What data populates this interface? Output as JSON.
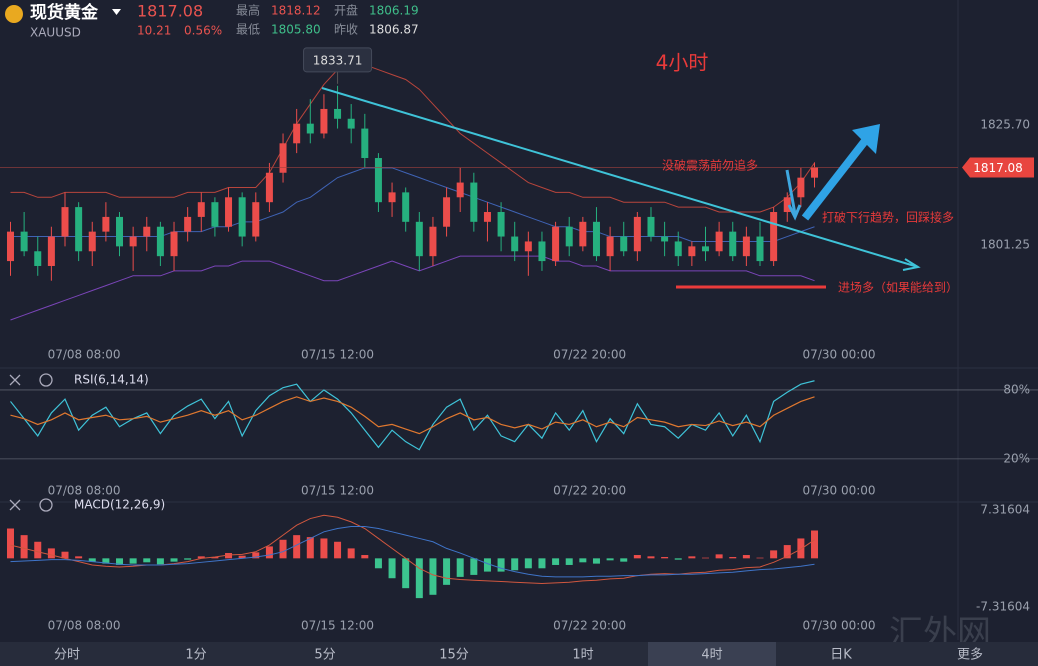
{
  "header": {
    "name": "现货黄金",
    "symbol": "XAUUSD",
    "price": "1817.08",
    "change": "10.21",
    "change_pct": "0.56%",
    "stats": [
      {
        "label": "最高",
        "value": "1818.12"
      },
      {
        "label": "开盘",
        "value": "1806.19"
      },
      {
        "label": "最低",
        "value": "1805.80"
      },
      {
        "label": "昨收",
        "value": "1806.87"
      }
    ]
  },
  "tabs": [
    "分时",
    "1分",
    "5分",
    "15分",
    "1时",
    "4时",
    "日K",
    "更多"
  ],
  "active_tab": 5,
  "watermark": "汇外网",
  "chart_data": [
    {
      "type": "candlestick",
      "title": "4小时",
      "up_color": "#eb4d4b",
      "down_color": "#26b07f",
      "ylim": [
        1780.9,
        1851.2
      ],
      "yticks": [
        {
          "value": 1825.7,
          "label": "1825.70"
        },
        {
          "value": 1801.25,
          "label": "1801.25"
        }
      ],
      "xlim": [
        -0.77,
        75.4
      ],
      "xticks": [
        {
          "value": 5.4,
          "label": "07/08 08:00"
        },
        {
          "value": 24,
          "label": "07/15 12:00"
        },
        {
          "value": 42.5,
          "label": "07/22 20:00"
        },
        {
          "value": 60.8,
          "label": "07/30 00:00"
        }
      ],
      "price_tag": {
        "value": 1817.08,
        "label": "1817.08"
      },
      "peak_label": {
        "value": 1833.71,
        "label": "1833.71"
      },
      "annotations": [
        "没破震荡前勿追多",
        "打破下行趋势，回踩接多",
        "进场多（如果能给到）"
      ],
      "candles": [
        [
          1798,
          1806,
          1795,
          1804
        ],
        [
          1804,
          1808,
          1799,
          1800
        ],
        [
          1800,
          1803,
          1795,
          1797
        ],
        [
          1797,
          1805,
          1794,
          1803
        ],
        [
          1803,
          1812,
          1801,
          1809
        ],
        [
          1809,
          1810,
          1798,
          1800
        ],
        [
          1800,
          1806,
          1797,
          1804
        ],
        [
          1804,
          1810,
          1802,
          1807
        ],
        [
          1807,
          1808,
          1799,
          1801
        ],
        [
          1801,
          1805,
          1796,
          1803
        ],
        [
          1803,
          1807,
          1800,
          1805
        ],
        [
          1805,
          1806,
          1797,
          1799
        ],
        [
          1799,
          1806,
          1796,
          1804
        ],
        [
          1804,
          1809,
          1802,
          1807
        ],
        [
          1807,
          1812,
          1804,
          1810
        ],
        [
          1810,
          1811,
          1803,
          1805
        ],
        [
          1805,
          1813,
          1804,
          1811
        ],
        [
          1811,
          1812,
          1801,
          1803
        ],
        [
          1803,
          1812,
          1802,
          1810
        ],
        [
          1810,
          1818,
          1808,
          1816
        ],
        [
          1816,
          1824,
          1814,
          1822
        ],
        [
          1822,
          1829,
          1820,
          1826
        ],
        [
          1826,
          1831,
          1822,
          1824
        ],
        [
          1824,
          1832,
          1823,
          1829
        ],
        [
          1829,
          1833.71,
          1825,
          1827
        ],
        [
          1827,
          1830,
          1822,
          1825
        ],
        [
          1825,
          1828,
          1817,
          1819
        ],
        [
          1819,
          1820,
          1808,
          1810
        ],
        [
          1810,
          1814,
          1807,
          1812
        ],
        [
          1812,
          1813,
          1804,
          1806
        ],
        [
          1806,
          1808,
          1796,
          1799
        ],
        [
          1799,
          1807,
          1797,
          1805
        ],
        [
          1805,
          1813,
          1803,
          1811
        ],
        [
          1811,
          1817,
          1808,
          1814
        ],
        [
          1814,
          1816,
          1804,
          1806
        ],
        [
          1806,
          1810,
          1802,
          1808
        ],
        [
          1808,
          1810,
          1800,
          1803
        ],
        [
          1803,
          1806,
          1798,
          1800
        ],
        [
          1800,
          1804,
          1795,
          1802
        ],
        [
          1802,
          1804,
          1796,
          1798
        ],
        [
          1798,
          1806,
          1797,
          1805
        ],
        [
          1805,
          1807,
          1799,
          1801
        ],
        [
          1801,
          1807,
          1800,
          1806
        ],
        [
          1806,
          1809,
          1798,
          1799
        ],
        [
          1799,
          1805,
          1796,
          1803
        ],
        [
          1803,
          1806,
          1799,
          1800
        ],
        [
          1800,
          1808,
          1798,
          1807
        ],
        [
          1807,
          1809,
          1802,
          1803
        ],
        [
          1803,
          1806,
          1799,
          1802
        ],
        [
          1802,
          1804,
          1797,
          1799
        ],
        [
          1799,
          1802,
          1797,
          1801
        ],
        [
          1801,
          1805,
          1798,
          1800
        ],
        [
          1800,
          1806,
          1799,
          1804
        ],
        [
          1804,
          1806,
          1798,
          1799
        ],
        [
          1799,
          1805,
          1797,
          1803
        ],
        [
          1803,
          1806,
          1797,
          1798
        ],
        [
          1798,
          1809,
          1797,
          1808
        ],
        [
          1808,
          1812,
          1806,
          1811
        ],
        [
          1811,
          1817,
          1809,
          1815
        ],
        [
          1815,
          1818.12,
          1813,
          1817.08
        ]
      ],
      "overlays": [
        {
          "color": "#b8453c",
          "values": [
            1812,
            1812,
            1811,
            1811,
            1812,
            1812,
            1812,
            1812,
            1811,
            1811,
            1811,
            1811,
            1811,
            1812,
            1812,
            1812,
            1813,
            1813,
            1813,
            1816,
            1821,
            1826,
            1830,
            1834,
            1837,
            1838,
            1838,
            1837,
            1836,
            1835,
            1833,
            1830,
            1827,
            1824,
            1822,
            1820,
            1818,
            1816,
            1814,
            1813,
            1812,
            1812,
            1811,
            1811,
            1811,
            1810,
            1810,
            1810,
            1810,
            1809,
            1809,
            1809,
            1808,
            1808,
            1808,
            1808,
            1809,
            1811,
            1814,
            1818
          ]
        },
        {
          "color": "#3f63b5",
          "values": [
            1803,
            1803,
            1803,
            1803,
            1803,
            1803,
            1803,
            1803,
            1803,
            1803,
            1803,
            1803,
            1804,
            1804,
            1804,
            1805,
            1805,
            1806,
            1806,
            1807,
            1808,
            1810,
            1811,
            1813,
            1815,
            1816,
            1817,
            1817,
            1817,
            1816,
            1815,
            1814,
            1813,
            1812,
            1811,
            1810,
            1809,
            1808,
            1807,
            1806,
            1805,
            1805,
            1804,
            1804,
            1803,
            1803,
            1803,
            1803,
            1803,
            1803,
            1802,
            1802,
            1802,
            1802,
            1802,
            1802,
            1802,
            1803,
            1804,
            1805
          ]
        },
        {
          "color": "#7a45b8",
          "values": [
            1786,
            1787,
            1788,
            1789,
            1790,
            1791,
            1792,
            1793,
            1794,
            1795,
            1795,
            1795,
            1796,
            1796,
            1796,
            1797,
            1797,
            1798,
            1798,
            1798,
            1797,
            1796,
            1795,
            1794,
            1794,
            1795,
            1796,
            1797,
            1798,
            1797,
            1796,
            1797,
            1798,
            1799,
            1799,
            1799,
            1799,
            1799,
            1799,
            1799,
            1798,
            1798,
            1797,
            1797,
            1796,
            1796,
            1796,
            1796,
            1796,
            1796,
            1796,
            1796,
            1796,
            1796,
            1796,
            1795,
            1795,
            1795,
            1795,
            1794
          ]
        }
      ]
    },
    {
      "type": "line",
      "title": "RSI(6,14,14)",
      "ylim": [
        6,
        93
      ],
      "yticks": [
        {
          "value": 80,
          "label": "80%"
        },
        {
          "value": 20,
          "label": "20%"
        }
      ],
      "xlim": [
        -0.77,
        75.4
      ],
      "xticks": [
        {
          "value": 5.4,
          "label": "07/08 08:00"
        },
        {
          "value": 24,
          "label": "07/15 12:00"
        },
        {
          "value": 42.5,
          "label": "07/22 20:00"
        },
        {
          "value": 60.8,
          "label": "07/30 00:00"
        }
      ],
      "series": [
        {
          "color": "#3fc3d8",
          "values": [
            70,
            55,
            40,
            60,
            72,
            45,
            58,
            65,
            48,
            55,
            60,
            42,
            58,
            66,
            72,
            55,
            70,
            40,
            62,
            75,
            82,
            85,
            70,
            80,
            72,
            60,
            45,
            30,
            45,
            35,
            28,
            50,
            65,
            72,
            45,
            58,
            40,
            35,
            50,
            38,
            60,
            45,
            62,
            35,
            55,
            42,
            68,
            50,
            48,
            38,
            50,
            45,
            60,
            40,
            58,
            35,
            70,
            78,
            85,
            88
          ]
        },
        {
          "color": "#e0782f",
          "values": [
            58,
            55,
            50,
            54,
            60,
            54,
            56,
            58,
            54,
            55,
            57,
            52,
            55,
            58,
            62,
            58,
            62,
            54,
            58,
            64,
            70,
            74,
            70,
            73,
            70,
            65,
            57,
            48,
            50,
            46,
            42,
            48,
            55,
            60,
            54,
            56,
            50,
            47,
            50,
            46,
            52,
            50,
            54,
            48,
            52,
            48,
            56,
            54,
            52,
            48,
            50,
            49,
            53,
            49,
            52,
            48,
            58,
            64,
            70,
            74
          ]
        }
      ]
    },
    {
      "type": "macd",
      "title": "MACD(12,26,9)",
      "ylim": [
        -9,
        8.8
      ],
      "yticks": [
        7.31604,
        -7.31604
      ],
      "up_color": "#eb4d4b",
      "down_color": "#3cc48f",
      "xlim": [
        -0.77,
        75.4
      ],
      "xticks": [
        {
          "value": 5.4,
          "label": "07/08 08:00"
        },
        {
          "value": 24,
          "label": "07/15 12:00"
        },
        {
          "value": 42.5,
          "label": "07/22 20:00"
        },
        {
          "value": 60.8,
          "label": "07/30 00:00"
        }
      ],
      "histogram": [
        4.5,
        3.5,
        2.5,
        1.5,
        1.0,
        0.3,
        -0.5,
        -0.8,
        -1.0,
        -0.8,
        -0.6,
        -0.9,
        -0.5,
        -0.2,
        0.3,
        0.2,
        0.8,
        0.4,
        0.9,
        1.8,
        2.8,
        3.5,
        3.2,
        3.0,
        2.5,
        1.5,
        0.5,
        -1.5,
        -3.0,
        -4.5,
        -6.0,
        -5.5,
        -4.0,
        -2.8,
        -2.5,
        -2.0,
        -2.0,
        -1.8,
        -1.5,
        -1.5,
        -1.0,
        -1.0,
        -0.6,
        -0.8,
        -0.3,
        -0.5,
        0.5,
        0.3,
        0.2,
        -0.2,
        0.3,
        0.1,
        0.6,
        0.2,
        0.5,
        0.1,
        1.2,
        2.0,
        3.0,
        4.2
      ],
      "series": [
        {
          "color": "#d0573f",
          "values": [
            2,
            1.5,
            1,
            0.5,
            0,
            -0.5,
            -1,
            -1.2,
            -1.3,
            -1.2,
            -1,
            -1,
            -0.8,
            -0.5,
            0,
            0.2,
            0.5,
            0.6,
            1,
            2,
            3.5,
            5,
            6,
            6.5,
            6.2,
            5.5,
            4.5,
            3,
            1.5,
            0,
            -1.5,
            -2.5,
            -3,
            -3.2,
            -3.3,
            -3.4,
            -3.5,
            -3.6,
            -3.7,
            -3.8,
            -3.7,
            -3.6,
            -3.4,
            -3.3,
            -3.1,
            -3,
            -2.6,
            -2.4,
            -2.3,
            -2.4,
            -2.2,
            -2.1,
            -1.8,
            -1.7,
            -1.4,
            -1.3,
            -0.6,
            0.3,
            1.4,
            2.8
          ]
        },
        {
          "color": "#3f74c8",
          "values": [
            -0.5,
            -0.4,
            -0.3,
            -0.2,
            -0.2,
            -0.3,
            -0.5,
            -0.7,
            -0.9,
            -1.0,
            -1.0,
            -1.0,
            -0.9,
            -0.8,
            -0.6,
            -0.4,
            -0.2,
            0,
            0.2,
            0.5,
            1.0,
            2.0,
            3.0,
            4.0,
            4.5,
            4.8,
            4.8,
            4.5,
            4.0,
            3.5,
            3.0,
            2.5,
            1.5,
            0.8,
            0,
            -0.8,
            -1.5,
            -2,
            -2.4,
            -2.7,
            -2.8,
            -2.8,
            -2.8,
            -2.7,
            -2.7,
            -2.6,
            -2.6,
            -2.5,
            -2.5,
            -2.4,
            -2.4,
            -2.3,
            -2.2,
            -2.1,
            -1.9,
            -1.7,
            -1.6,
            -1.4,
            -1.2,
            -0.9
          ]
        }
      ]
    }
  ]
}
